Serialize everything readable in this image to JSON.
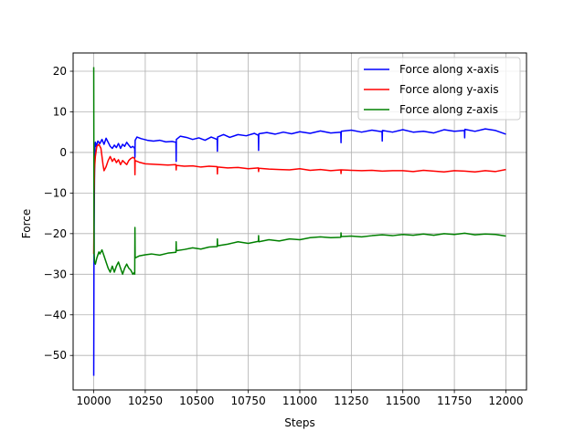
{
  "chart_data": {
    "type": "line",
    "title": "",
    "xlabel": "Steps",
    "ylabel": "Force",
    "xlim": [
      9900,
      12100
    ],
    "ylim": [
      -58.5,
      24.5
    ],
    "grid": true,
    "legend_position": "upper right",
    "x_ticks": [
      10000,
      10250,
      10500,
      10750,
      11000,
      11250,
      11500,
      11750,
      12000
    ],
    "x_tick_labels": [
      "10000",
      "10250",
      "10500",
      "10750",
      "11000",
      "11250",
      "11500",
      "11750",
      "12000"
    ],
    "y_ticks": [
      20,
      10,
      0,
      -10,
      -20,
      -30,
      -40,
      -50
    ],
    "y_tick_labels": [
      "20",
      "10",
      "0",
      "−10",
      "−20",
      "−30",
      "−40",
      "−50"
    ],
    "series": [
      {
        "name": "Force along x-axis",
        "color": "#0000ff",
        "x": [
          10000,
          10001,
          10002,
          10004,
          10006,
          10008,
          10012,
          10020,
          10030,
          10040,
          10050,
          10060,
          10070,
          10080,
          10090,
          10100,
          10110,
          10120,
          10130,
          10140,
          10150,
          10160,
          10170,
          10180,
          10190,
          10199,
          10200,
          10201,
          10210,
          10230,
          10260,
          10290,
          10320,
          10350,
          10380,
          10399,
          10400,
          10401,
          10420,
          10450,
          10480,
          10510,
          10540,
          10570,
          10599,
          10600,
          10601,
          10630,
          10660,
          10700,
          10740,
          10780,
          10799,
          10800,
          10801,
          10840,
          10880,
          10920,
          10960,
          11000,
          11050,
          11100,
          11150,
          11199,
          11200,
          11201,
          11250,
          11300,
          11350,
          11399,
          11400,
          11401,
          11450,
          11500,
          11550,
          11600,
          11650,
          11700,
          11750,
          11799,
          11800,
          11801,
          11850,
          11900,
          11950,
          12000
        ],
        "y": [
          -55,
          -30,
          -18,
          -5,
          1,
          2.5,
          1.5,
          2.8,
          2.2,
          3.2,
          2.0,
          3.5,
          2.5,
          1.5,
          1.0,
          1.8,
          1.2,
          2.2,
          1.0,
          2.0,
          1.5,
          2.5,
          1.8,
          1.2,
          1.5,
          1.0,
          -1.2,
          3.0,
          3.8,
          3.4,
          3.0,
          2.8,
          3.0,
          2.6,
          2.7,
          2.5,
          -2.2,
          3.2,
          4.0,
          3.7,
          3.2,
          3.6,
          3.0,
          3.8,
          3.2,
          0.3,
          3.8,
          4.4,
          3.7,
          4.4,
          4.1,
          4.7,
          4.2,
          0.5,
          4.6,
          4.9,
          4.5,
          5.0,
          4.6,
          5.1,
          4.7,
          5.3,
          4.8,
          5.0,
          2.4,
          5.2,
          5.5,
          5.0,
          5.5,
          5.1,
          2.8,
          5.4,
          5.0,
          5.6,
          5.0,
          5.2,
          4.8,
          5.6,
          5.2,
          5.4,
          3.6,
          5.7,
          5.2,
          5.8,
          5.4,
          4.5
        ]
      },
      {
        "name": "Force along y-axis",
        "color": "#ff0000",
        "x": [
          10000,
          10002,
          10004,
          10008,
          10015,
          10025,
          10035,
          10045,
          10050,
          10060,
          10070,
          10080,
          10090,
          10100,
          10110,
          10120,
          10130,
          10140,
          10150,
          10160,
          10170,
          10180,
          10190,
          10199,
          10200,
          10201,
          10220,
          10250,
          10280,
          10320,
          10360,
          10399,
          10400,
          10401,
          10440,
          10480,
          10520,
          10560,
          10599,
          10600,
          10601,
          10650,
          10700,
          10750,
          10799,
          10800,
          10801,
          10850,
          10900,
          10950,
          11000,
          11050,
          11100,
          11150,
          11199,
          11200,
          11201,
          11250,
          11300,
          11350,
          11400,
          11450,
          11500,
          11550,
          11600,
          11650,
          11700,
          11750,
          11800,
          11850,
          11900,
          11950,
          12000
        ],
        "y": [
          -25,
          -10,
          -4,
          -1,
          1.5,
          2.0,
          1.0,
          -3,
          -4.5,
          -3.5,
          -2.0,
          -1.0,
          -2.2,
          -1.5,
          -2.5,
          -1.8,
          -3.0,
          -2.0,
          -2.5,
          -3.0,
          -2.0,
          -1.5,
          -1.2,
          -1.5,
          -5.5,
          -2.0,
          -2.4,
          -2.8,
          -2.9,
          -3.0,
          -3.1,
          -3.0,
          -4.3,
          -3.2,
          -3.4,
          -3.3,
          -3.6,
          -3.4,
          -3.5,
          -5.3,
          -3.6,
          -3.8,
          -3.7,
          -4.0,
          -3.8,
          -4.7,
          -3.9,
          -4.1,
          -4.2,
          -4.3,
          -4.0,
          -4.4,
          -4.2,
          -4.5,
          -4.3,
          -5.2,
          -4.3,
          -4.4,
          -4.5,
          -4.4,
          -4.6,
          -4.5,
          -4.5,
          -4.7,
          -4.4,
          -4.6,
          -4.8,
          -4.5,
          -4.6,
          -4.8,
          -4.5,
          -4.7,
          -4.2
        ]
      },
      {
        "name": "Force along z-axis",
        "color": "#008000",
        "x": [
          10000,
          10001,
          10002,
          10004,
          10008,
          10015,
          10025,
          10030,
          10040,
          10050,
          10060,
          10070,
          10080,
          10090,
          10100,
          10110,
          10120,
          10130,
          10140,
          10150,
          10160,
          10170,
          10180,
          10190,
          10198,
          10199,
          10200,
          10201,
          10220,
          10250,
          10280,
          10320,
          10360,
          10399,
          10400,
          10401,
          10440,
          10480,
          10520,
          10560,
          10599,
          10600,
          10601,
          10650,
          10700,
          10750,
          10799,
          10800,
          10801,
          10850,
          10900,
          10950,
          11000,
          11050,
          11100,
          11150,
          11199,
          11200,
          11201,
          11250,
          11300,
          11350,
          11400,
          11450,
          11500,
          11550,
          11600,
          11650,
          11700,
          11750,
          11800,
          11850,
          11900,
          11950,
          12000
        ],
        "y": [
          21,
          -10,
          -25,
          -27,
          -27.5,
          -26.0,
          -24.5,
          -25.0,
          -24.0,
          -25.5,
          -27.0,
          -28.5,
          -29.5,
          -28.0,
          -29.5,
          -28.0,
          -27.0,
          -28.5,
          -30.0,
          -28.5,
          -27.5,
          -28.5,
          -29.0,
          -30.0,
          -29.5,
          -30.0,
          -18.5,
          -26.0,
          -25.5,
          -25.2,
          -25.0,
          -25.3,
          -24.8,
          -24.6,
          -22.0,
          -24.2,
          -23.9,
          -23.5,
          -23.8,
          -23.3,
          -23.2,
          -21.3,
          -23.0,
          -22.6,
          -22.0,
          -22.4,
          -21.9,
          -20.5,
          -22.0,
          -21.5,
          -21.8,
          -21.3,
          -21.5,
          -21.0,
          -20.8,
          -21.0,
          -20.9,
          -19.8,
          -20.7,
          -20.6,
          -20.8,
          -20.5,
          -20.3,
          -20.5,
          -20.2,
          -20.4,
          -20.1,
          -20.4,
          -20.0,
          -20.2,
          -19.9,
          -20.3,
          -20.1,
          -20.2,
          -20.6
        ]
      }
    ]
  }
}
